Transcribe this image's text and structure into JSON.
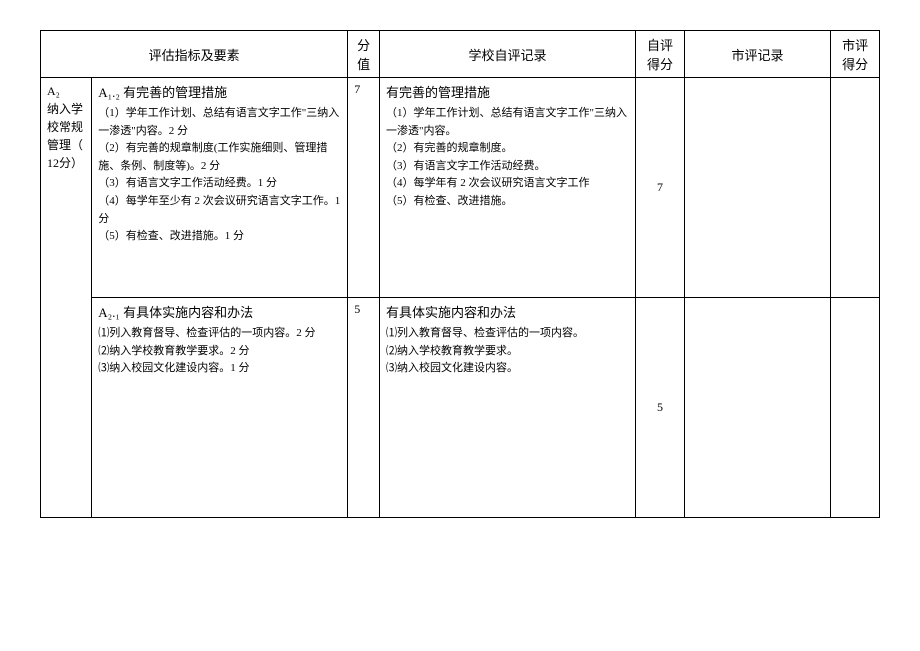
{
  "headers": {
    "h1": "评估指标及要素",
    "h2": "分值",
    "h3": "学校自评记录",
    "h4": "自评得分",
    "h5": "市评记录",
    "h6": "市评得分"
  },
  "category": {
    "code": "A₂",
    "label": "纳入学校常规管理（ 12分）"
  },
  "row1": {
    "criteria_title": "A₁.₂ 有完善的管理措施",
    "criteria_body": "（1）学年工作计划、总结有语言文字工作\"三纳入一渗透\"内容。2 分\n（2）有完善的规章制度(工作实施细则、管理措施、条例、制度等)。2 分\n（3）有语言文字工作活动经费。1 分\n（4）每学年至少有 2 次会议研究语言文字工作。1 分\n（5）有检查、改进措施。1 分",
    "score": "7",
    "self_title": "有完善的管理措施",
    "self_body": "（1）学年工作计划、总结有语言文字工作\"三纳入一渗透\"内容。\n（2）有完善的规章制度。\n（3）有语言文字工作活动经费。\n（4）每学年有 2 次会议研究语言文字工作\n（5）有检查、改进措施。",
    "self_score": "7"
  },
  "row2": {
    "criteria_title": "A₂.₁ 有具体实施内容和办法",
    "criteria_body": "⑴列入教育督导、检查评估的一项内容。2 分\n⑵纳入学校教育教学要求。2 分\n⑶纳入校园文化建设内容。1 分",
    "score": "5",
    "self_title": "有具体实施内容和办法",
    "self_body": "⑴列入教育督导、检查评估的一项内容。\n⑵纳入学校教育教学要求。\n⑶纳入校园文化建设内容。",
    "self_score": "5"
  }
}
